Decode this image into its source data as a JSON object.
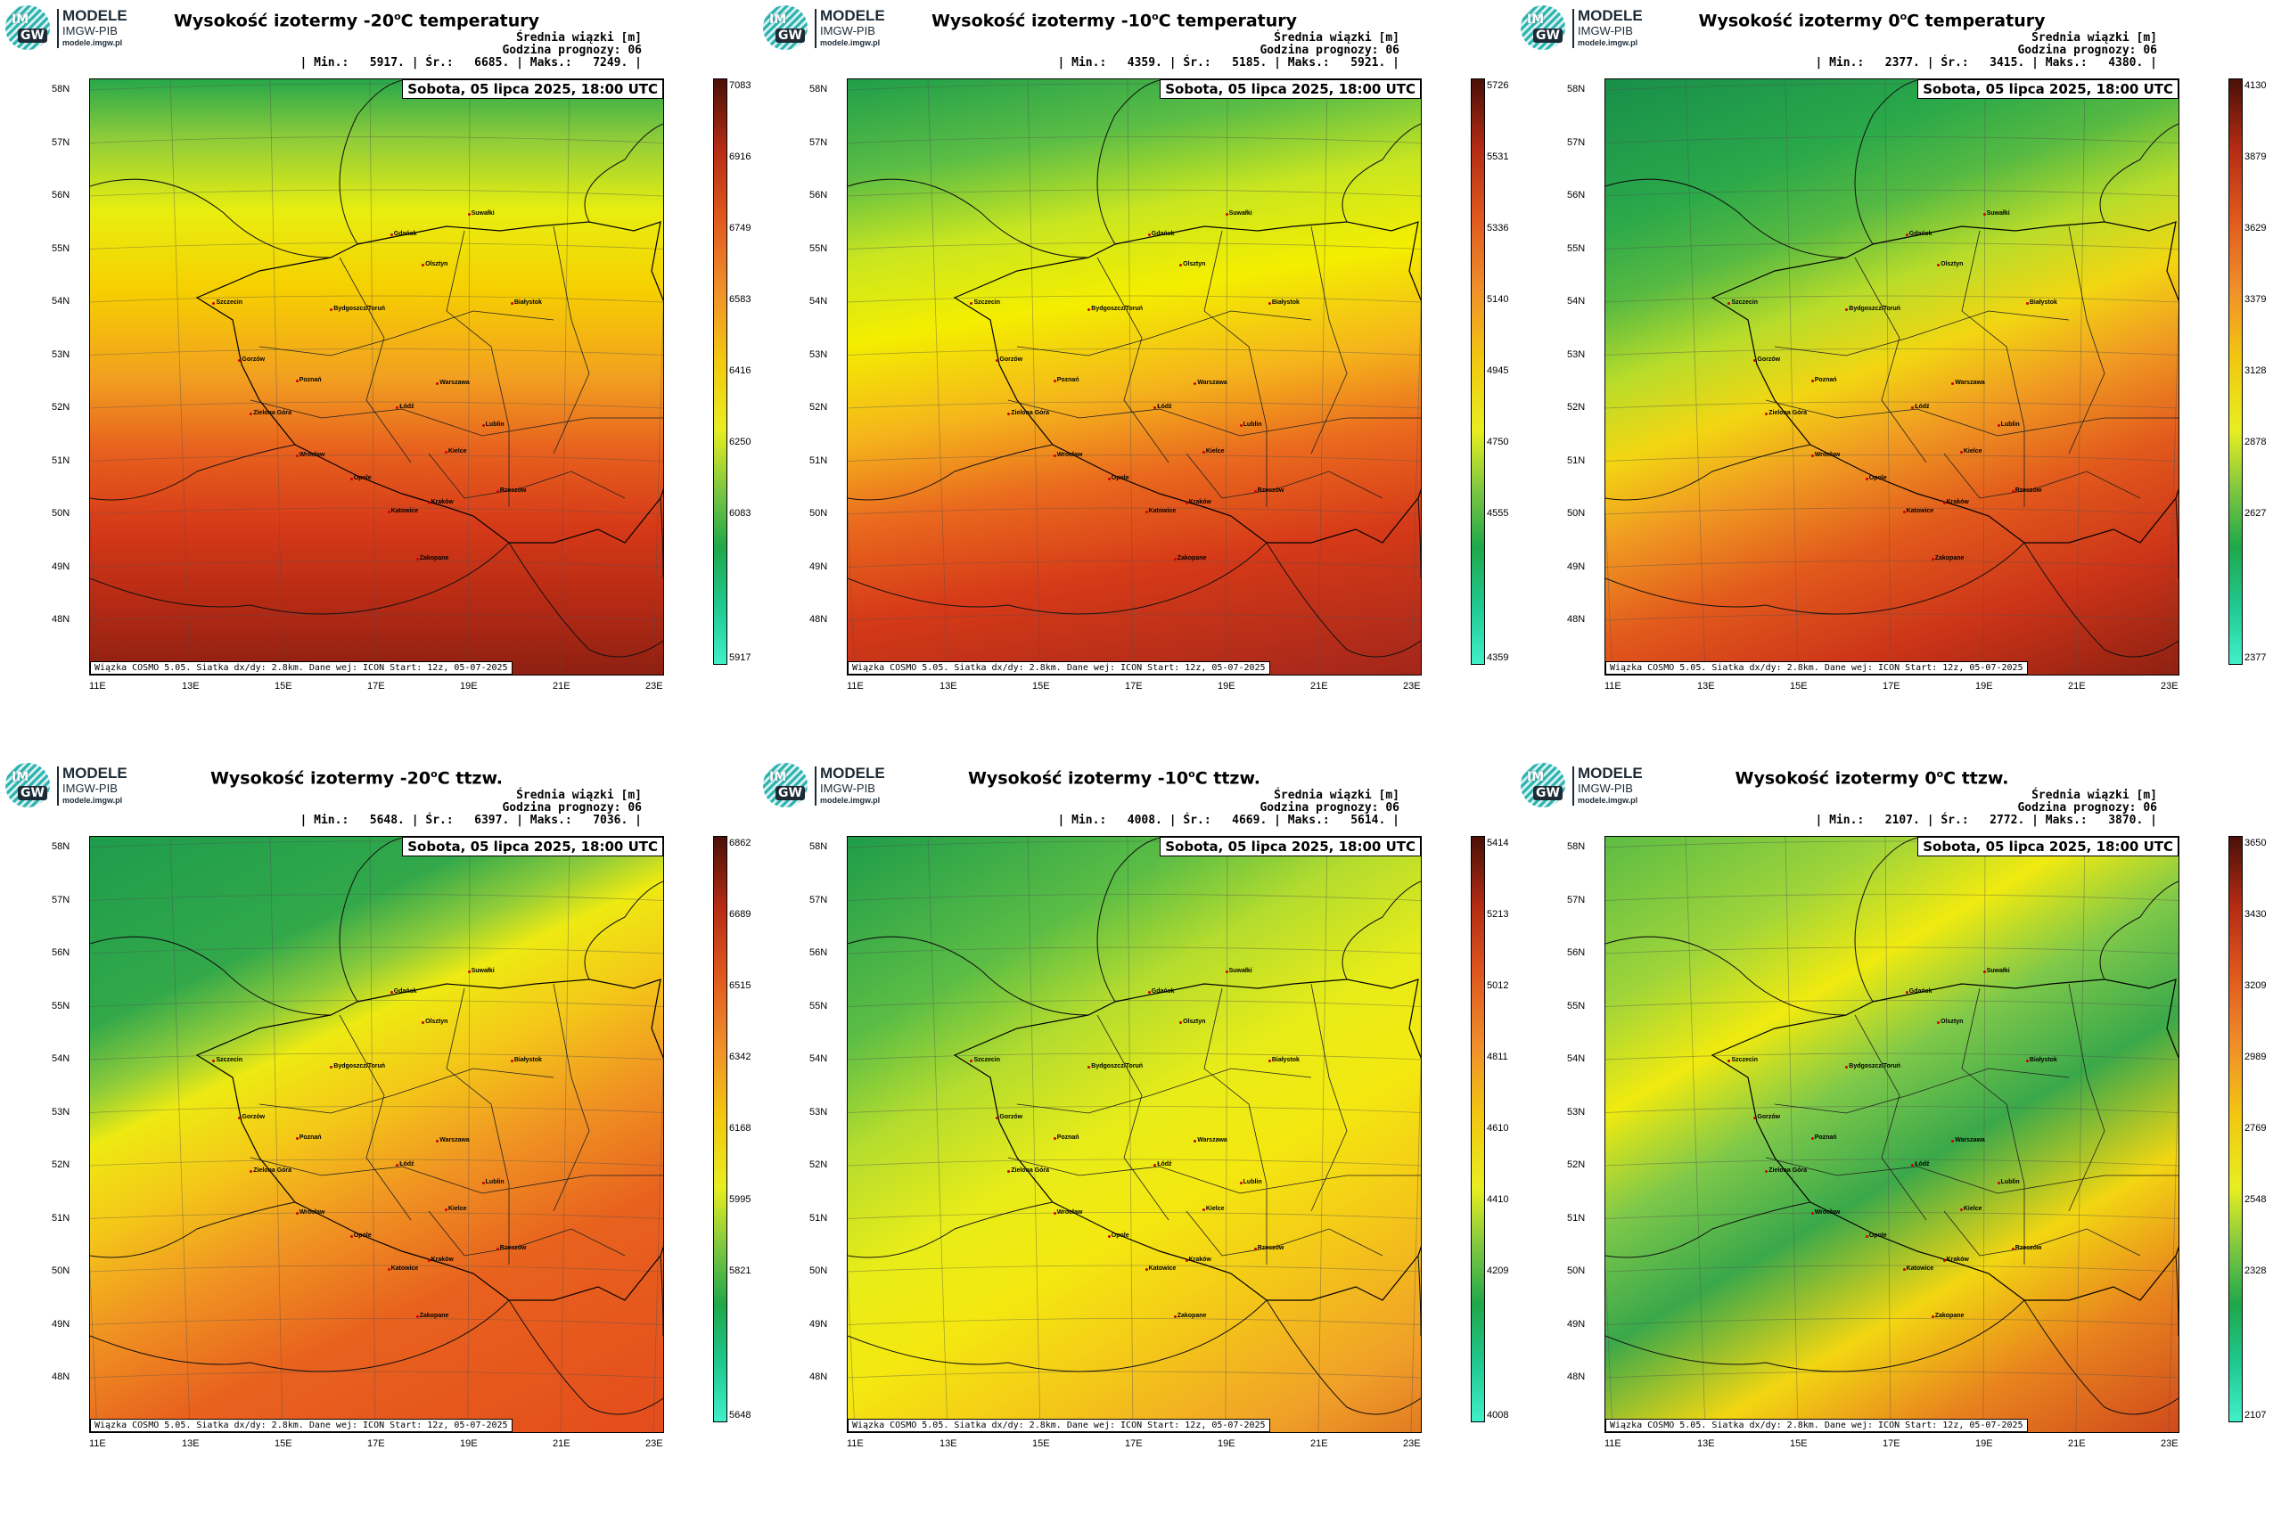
{
  "logo": {
    "line1": "MODELE",
    "line2": "IMGW-PIB",
    "line3": "modele.imgw.pl",
    "im": "IM",
    "gw": "GW"
  },
  "common": {
    "header_unit": "Średnia wiązki [m]",
    "forecast_hour": "Godzina prognozy: 06",
    "date": "Sobota, 05 lipca 2025, 18:00 UTC",
    "footer": "Wiązka COSMO 5.05. Siatka dx/dy: 2.8km. Dane wej: ICON Start: 12z, 05-07-2025",
    "lat_labels": [
      "58N",
      "57N",
      "56N",
      "55N",
      "54N",
      "53N",
      "52N",
      "51N",
      "50N",
      "49N",
      "48N"
    ],
    "lon_labels": [
      "11E",
      "13E",
      "15E",
      "17E",
      "19E",
      "21E",
      "23E"
    ]
  },
  "cities": [
    "Gdańsk",
    "Olsztyn",
    "Suwałki",
    "Szczecin",
    "Bydgoszcz/Toruń",
    "Białystok",
    "Gorzów",
    "Poznań",
    "Warszawa",
    "Zielona Góra",
    "Łódź",
    "Lublin",
    "Wrocław",
    "Kielce",
    "Opole",
    "Rzeszów",
    "Katowice",
    "Kraków",
    "Zakopane"
  ],
  "panels": [
    {
      "title_pre": "Wysokość izotermy -20",
      "title_post": "C temperatury",
      "stats": "| Min.:   5917. | Śr.:   6685. | Maks.:   7249. |",
      "ticks": [
        "7083",
        "6916",
        "6749",
        "6583",
        "6416",
        "6250",
        "6083",
        "5917"
      ],
      "scheme": "t20"
    },
    {
      "title_pre": "Wysokość izotermy -10",
      "title_post": "C temperatury",
      "stats": "| Min.:   4359. | Śr.:   5185. | Maks.:   5921. |",
      "ticks": [
        "5726",
        "5531",
        "5336",
        "5140",
        "4945",
        "4750",
        "4555",
        "4359"
      ],
      "scheme": "t10"
    },
    {
      "title_pre": "Wysokość izotermy 0",
      "title_post": "C temperatury",
      "stats": "| Min.:   2377. | Śr.:   3415. | Maks.:   4380. |",
      "ticks": [
        "4130",
        "3879",
        "3629",
        "3379",
        "3128",
        "2878",
        "2627",
        "2377"
      ],
      "scheme": "t0"
    },
    {
      "title_pre": "Wysokość izotermy -20",
      "title_post": "C ttzw.",
      "stats": "| Min.:   5648. | Śr.:   6397. | Maks.:   7036. |",
      "ticks": [
        "6862",
        "6689",
        "6515",
        "6342",
        "6168",
        "5995",
        "5821",
        "5648"
      ],
      "scheme": "w20"
    },
    {
      "title_pre": "Wysokość izotermy -10",
      "title_post": "C ttzw.",
      "stats": "| Min.:   4008. | Śr.:   4669. | Maks.:   5614. |",
      "ticks": [
        "5414",
        "5213",
        "5012",
        "4811",
        "4610",
        "4410",
        "4209",
        "4008"
      ],
      "scheme": "w10"
    },
    {
      "title_pre": "Wysokość izotermy 0",
      "title_post": "C ttzw.",
      "stats": "| Min.:   2107. | Śr.:   2772. | Maks.:   3870. |",
      "ticks": [
        "3650",
        "3430",
        "3209",
        "2989",
        "2769",
        "2548",
        "2328",
        "2107"
      ],
      "scheme": "w0"
    }
  ],
  "colors": {
    "green": "#1fa84a",
    "yellow": "#f4f000",
    "orange": "#f08a1a",
    "red": "#d23a1a",
    "darkred": "#7a1a10"
  }
}
